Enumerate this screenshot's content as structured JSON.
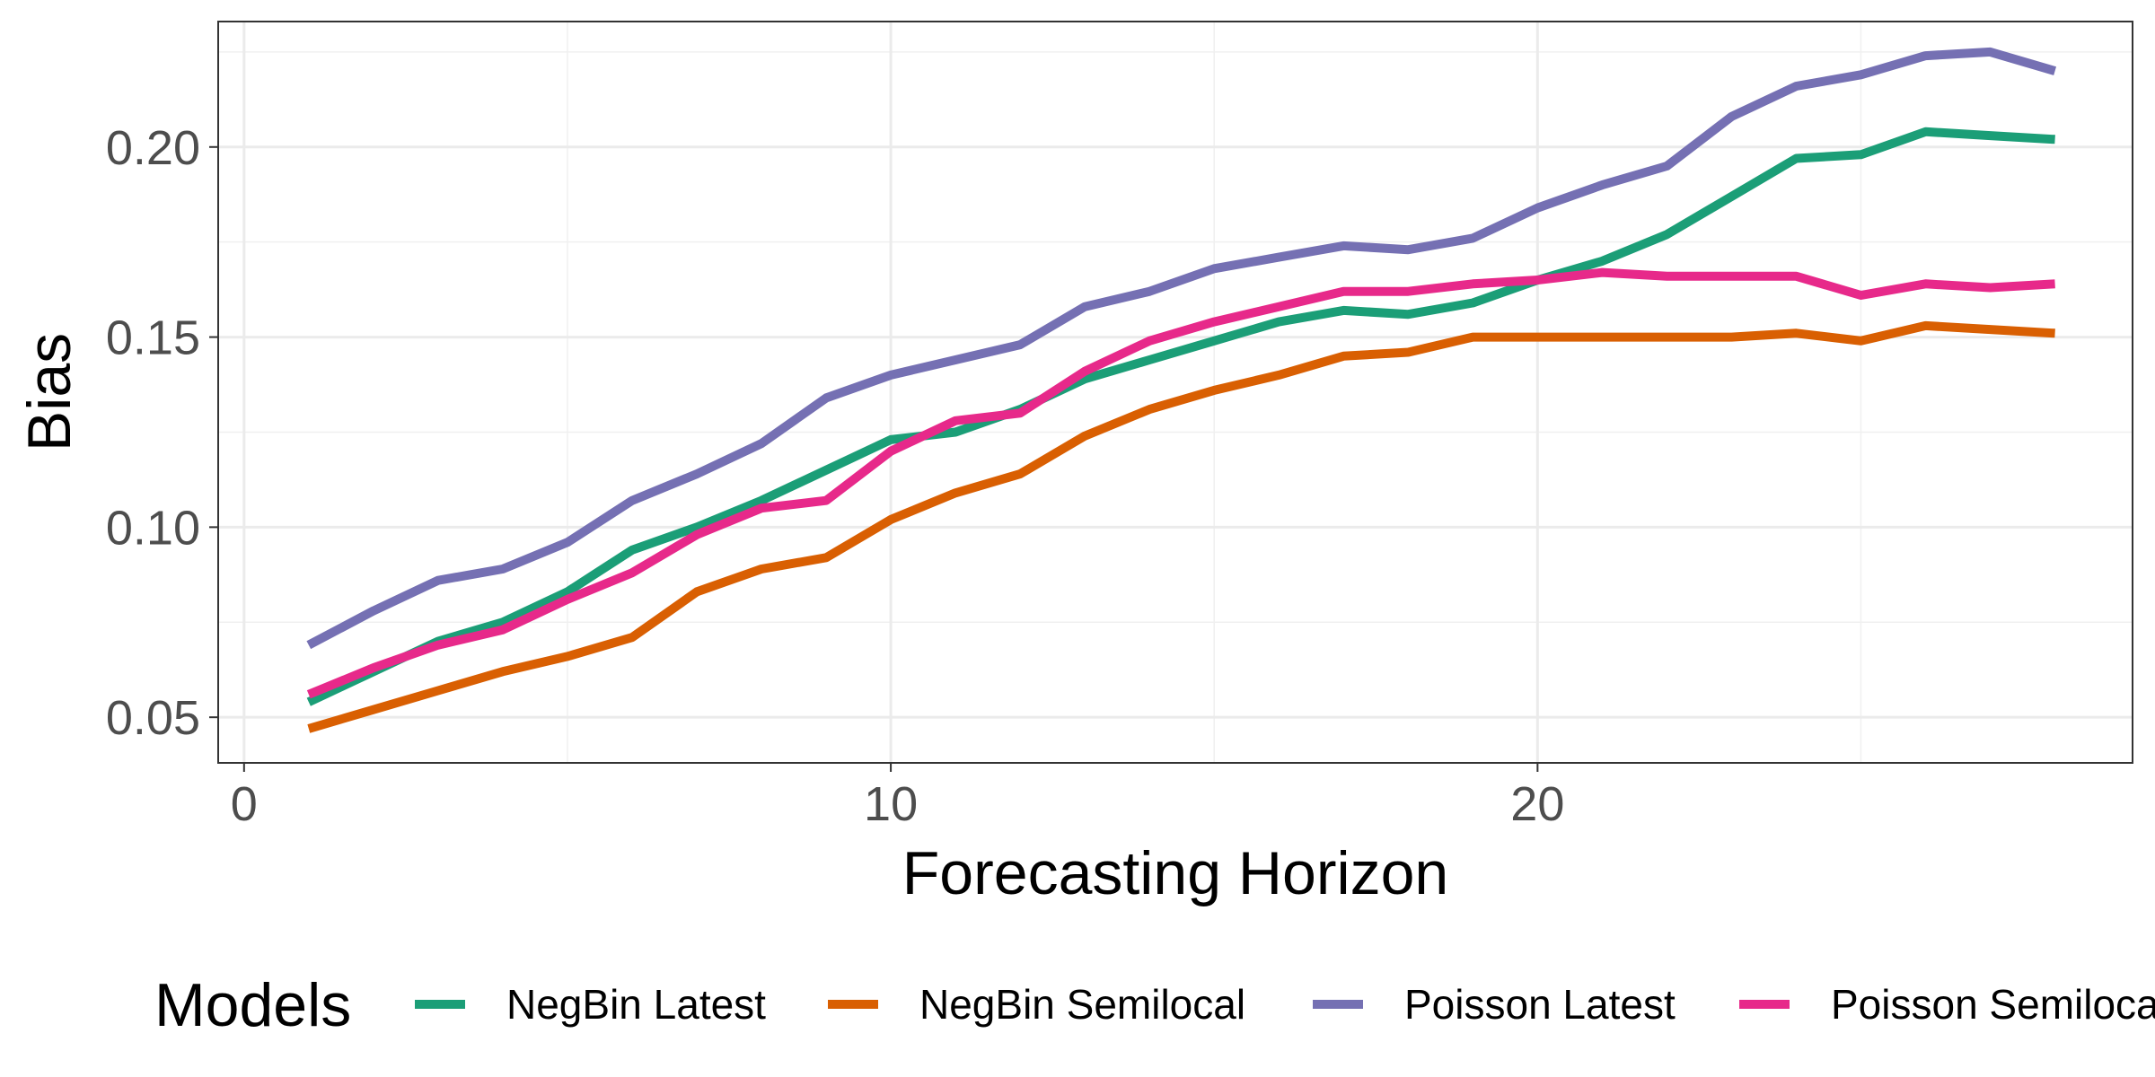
{
  "chart_data": {
    "type": "line",
    "title": "",
    "xlabel": "Forecasting Horizon",
    "ylabel": "Bias",
    "xlim": [
      -0.4,
      29.2
    ],
    "ylim": [
      0.038,
      0.233
    ],
    "x_ticks": [
      0,
      10,
      20
    ],
    "x_tick_labels": [
      "0",
      "10",
      "20"
    ],
    "y_ticks": [
      0.05,
      0.1,
      0.15,
      0.2
    ],
    "y_tick_labels": [
      "0.05",
      "0.10",
      "0.15",
      "0.20"
    ],
    "grid": true,
    "legend": {
      "title": "Models",
      "position": "bottom"
    },
    "x": [
      1,
      2,
      3,
      4,
      5,
      6,
      7,
      8,
      9,
      10,
      11,
      12,
      13,
      14,
      15,
      16,
      17,
      18,
      19,
      20,
      21,
      22,
      23,
      24,
      25,
      26,
      27,
      28
    ],
    "series": [
      {
        "name": "NegBin Latest",
        "color": "#1b9e77",
        "values": [
          0.054,
          0.062,
          0.07,
          0.075,
          0.083,
          0.094,
          0.1,
          0.107,
          0.115,
          0.123,
          0.125,
          0.131,
          0.139,
          0.144,
          0.149,
          0.154,
          0.157,
          0.156,
          0.159,
          0.165,
          0.17,
          0.177,
          0.187,
          0.197,
          0.198,
          0.204,
          0.203,
          0.202
        ]
      },
      {
        "name": "NegBin Semilocal",
        "color": "#d95f02",
        "values": [
          0.047,
          0.052,
          0.057,
          0.062,
          0.066,
          0.071,
          0.083,
          0.089,
          0.092,
          0.102,
          0.109,
          0.114,
          0.124,
          0.131,
          0.136,
          0.14,
          0.145,
          0.146,
          0.15,
          0.15,
          0.15,
          0.15,
          0.15,
          0.151,
          0.149,
          0.153,
          0.152,
          0.151
        ]
      },
      {
        "name": "Poisson Latest",
        "color": "#7570b3",
        "values": [
          0.069,
          0.078,
          0.086,
          0.089,
          0.096,
          0.107,
          0.114,
          0.122,
          0.134,
          0.14,
          0.144,
          0.148,
          0.158,
          0.162,
          0.168,
          0.171,
          0.174,
          0.173,
          0.176,
          0.184,
          0.19,
          0.195,
          0.208,
          0.216,
          0.219,
          0.224,
          0.225,
          0.22
        ]
      },
      {
        "name": "Poisson Semilocal",
        "color": "#e7298a",
        "values": [
          0.056,
          0.063,
          0.069,
          0.073,
          0.081,
          0.088,
          0.098,
          0.105,
          0.107,
          0.12,
          0.128,
          0.13,
          0.141,
          0.149,
          0.154,
          0.158,
          0.162,
          0.162,
          0.164,
          0.165,
          0.167,
          0.166,
          0.166,
          0.166,
          0.161,
          0.164,
          0.163,
          0.164
        ]
      }
    ]
  }
}
